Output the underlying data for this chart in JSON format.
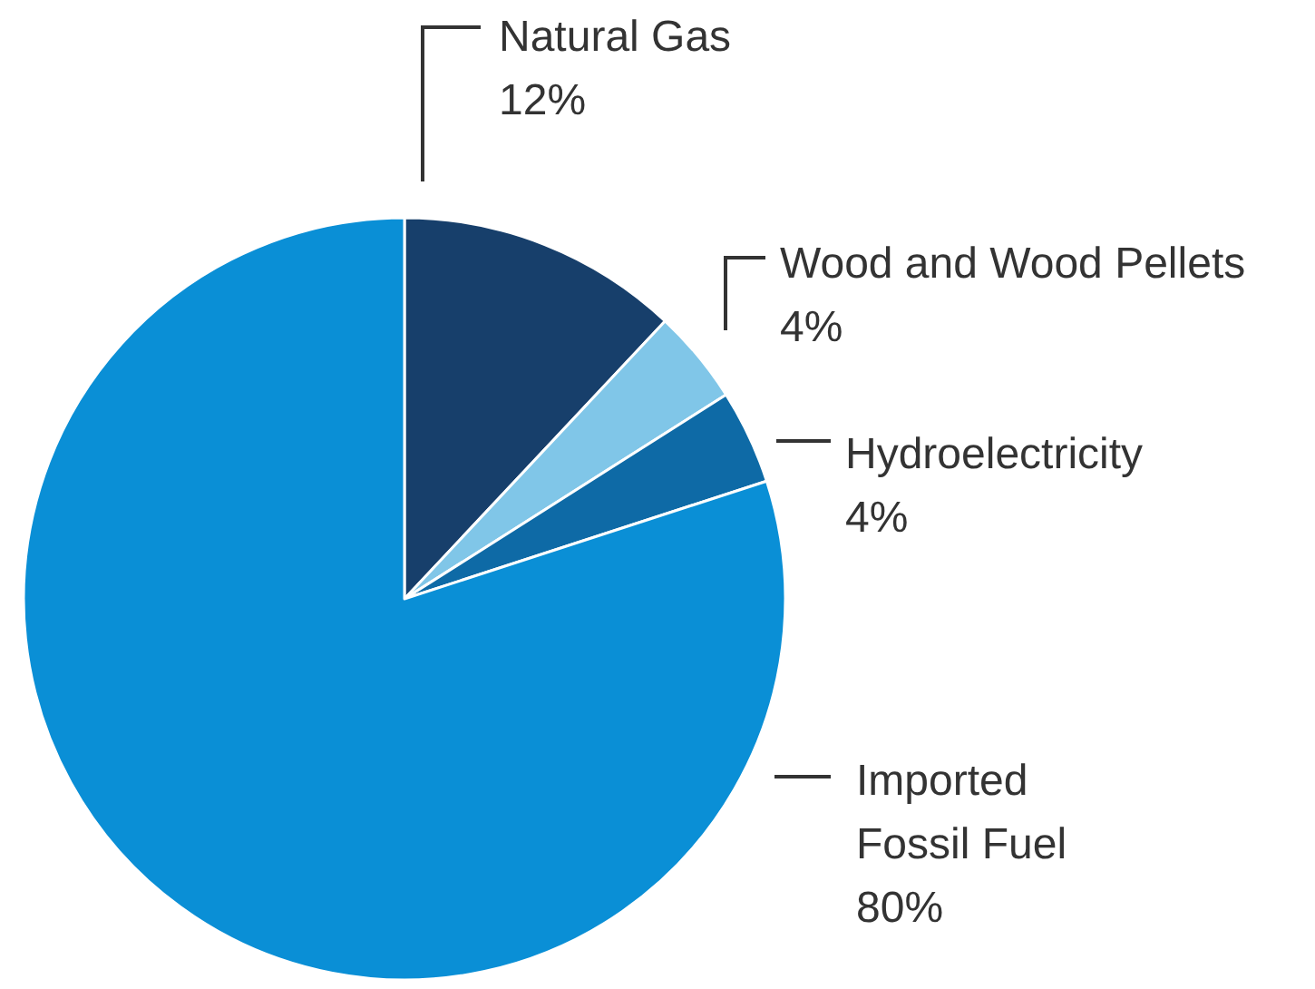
{
  "chart_data": {
    "type": "pie",
    "categories": [
      "Natural Gas",
      "Wood and Wood Pellets",
      "Hydroelectricity",
      "Imported Fossil Fuel"
    ],
    "values": [
      12,
      4,
      4,
      80
    ],
    "colors": [
      "#173f6b",
      "#80c6e8",
      "#0e6aa6",
      "#0a8fd6"
    ],
    "value_labels": [
      "12%",
      "4%",
      "4%",
      "80%"
    ]
  }
}
